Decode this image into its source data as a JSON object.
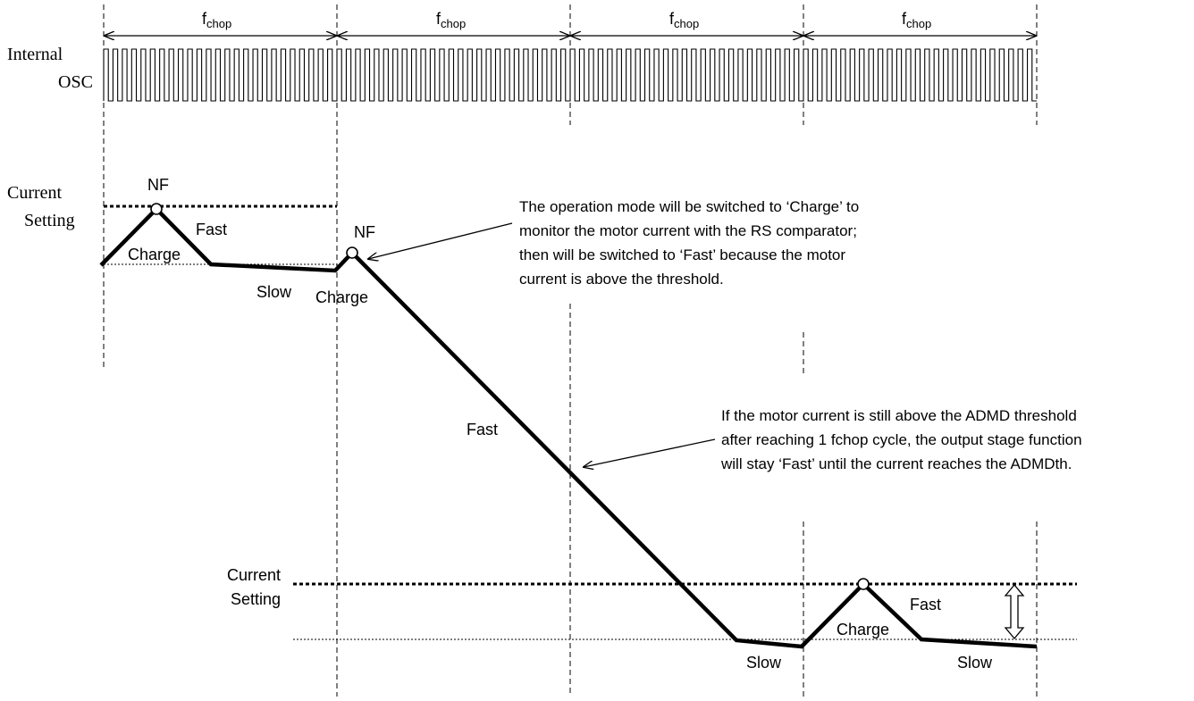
{
  "period": {
    "label_main": "f",
    "label_sub": "chop",
    "count": 4
  },
  "signals": {
    "osc_line1": "Internal",
    "osc_line2": "OSC",
    "setting_top_line1": "Current",
    "setting_top_line2": "Setting",
    "setting_bottom_line1": "Current",
    "setting_bottom_line2": "Setting"
  },
  "points": {
    "nf_first": "NF",
    "nf_second": "NF"
  },
  "phases": {
    "charge_1": "Charge",
    "fast_1": "Fast",
    "slow_1": "Slow",
    "charge_2": "Charge",
    "fast_2": "Fast",
    "slow_2": "Slow",
    "charge_3": "Charge",
    "fast_3": "Fast",
    "slow_3": "Slow"
  },
  "notes": {
    "note1": [
      "The operation mode will be switched to ‘Charge’ to",
      "monitor the motor current with the RS comparator;",
      "then will be switched to ‘Fast’ because the motor",
      "current is above the threshold."
    ],
    "note2": [
      "If the motor current is still above the ADMD threshold",
      "after reaching 1 fchop cycle, the output stage function",
      "will stay ‘Fast’ until the current reaches the ADMDth."
    ]
  }
}
